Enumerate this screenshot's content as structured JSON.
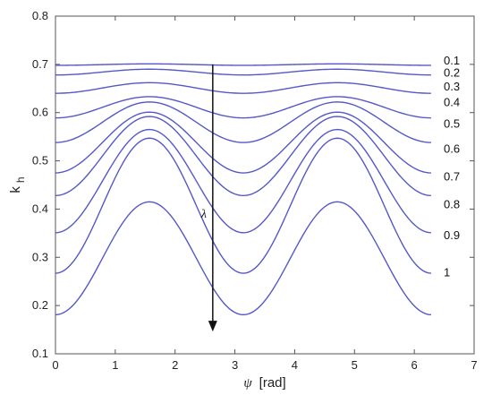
{
  "chart_data": {
    "type": "line",
    "xlabel_symbol": "ψ",
    "xlabel_unit": "[rad]",
    "ylabel_main": "k",
    "ylabel_sub": "h",
    "xlim": [
      0,
      7
    ],
    "ylim": [
      0.1,
      0.8
    ],
    "xticks": [
      "0",
      "1",
      "2",
      "3",
      "4",
      "5",
      "6",
      "7"
    ],
    "yticks": [
      "0.1",
      "0.2",
      "0.3",
      "0.4",
      "0.5",
      "0.6",
      "0.7",
      "0.8"
    ],
    "grid": false,
    "line_color": "#5558c8",
    "annotation": {
      "symbol": "λ",
      "arrow_x": 2.63,
      "arrow_from_y": 0.7,
      "arrow_to_y": 0.15
    },
    "x_domain": [
      0,
      6.28
    ],
    "series": [
      {
        "label": "0.1",
        "center": 0.6995,
        "amplitude": 0.0015,
        "end_label_y": 0.707
      },
      {
        "label": "0.2",
        "center": 0.684,
        "amplitude": 0.006,
        "end_label_y": 0.682
      },
      {
        "label": "0.3",
        "center": 0.651,
        "amplitude": 0.011,
        "end_label_y": 0.653
      },
      {
        "label": "0.4",
        "center": 0.611,
        "amplitude": 0.022,
        "end_label_y": 0.621
      },
      {
        "label": "0.5",
        "center": 0.58,
        "amplitude": 0.042,
        "end_label_y": 0.576
      },
      {
        "label": "0.6",
        "center": 0.538,
        "amplitude": 0.063,
        "end_label_y": 0.524
      },
      {
        "label": "0.7",
        "center": 0.51,
        "amplitude": 0.082,
        "end_label_y": 0.467
      },
      {
        "label": "0.8",
        "center": 0.458,
        "amplitude": 0.107,
        "end_label_y": 0.409
      },
      {
        "label": "0.9",
        "center": 0.407,
        "amplitude": 0.14,
        "end_label_y": 0.345
      },
      {
        "label": "1",
        "center": 0.298,
        "amplitude": 0.117,
        "end_label_y": 0.268
      }
    ]
  }
}
